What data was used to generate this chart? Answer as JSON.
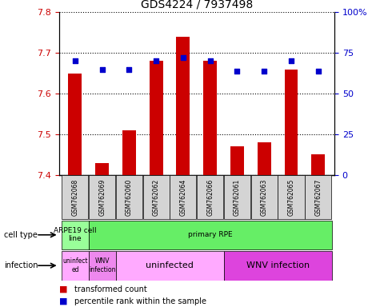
{
  "title": "GDS4224 / 7937498",
  "samples": [
    "GSM762068",
    "GSM762069",
    "GSM762060",
    "GSM762062",
    "GSM762064",
    "GSM762066",
    "GSM762061",
    "GSM762063",
    "GSM762065",
    "GSM762067"
  ],
  "transformed_counts": [
    7.65,
    7.43,
    7.51,
    7.68,
    7.74,
    7.68,
    7.47,
    7.48,
    7.66,
    7.45
  ],
  "percentile_ranks": [
    70,
    65,
    65,
    70,
    72,
    70,
    64,
    64,
    70,
    64
  ],
  "ylim_left": [
    7.4,
    7.8
  ],
  "ylim_right": [
    0,
    100
  ],
  "yticks_left": [
    7.4,
    7.5,
    7.6,
    7.7,
    7.8
  ],
  "yticks_right": [
    0,
    25,
    50,
    75,
    100
  ],
  "bar_color": "#cc0000",
  "dot_color": "#0000cc",
  "bar_width": 0.5,
  "cell_type_groups": [
    {
      "label": "ARPE19 cell\nline",
      "start": 0,
      "end": 0,
      "color": "#99ff99"
    },
    {
      "label": "primary RPE",
      "start": 1,
      "end": 9,
      "color": "#66ee66"
    }
  ],
  "infection_groups": [
    {
      "label": "uninfect\ned",
      "start": 0,
      "end": 0,
      "color": "#ffaaff"
    },
    {
      "label": "WNV\ninfection",
      "start": 1,
      "end": 1,
      "color": "#ee88ee"
    },
    {
      "label": "uninfected",
      "start": 2,
      "end": 5,
      "color": "#ffaaff"
    },
    {
      "label": "WNV infection",
      "start": 6,
      "end": 9,
      "color": "#dd44dd"
    }
  ],
  "left_tick_color": "#cc0000",
  "right_tick_color": "#0000cc",
  "grid_color": "black",
  "background_color": "#ffffff",
  "label_row_color": "#d4d4d4"
}
